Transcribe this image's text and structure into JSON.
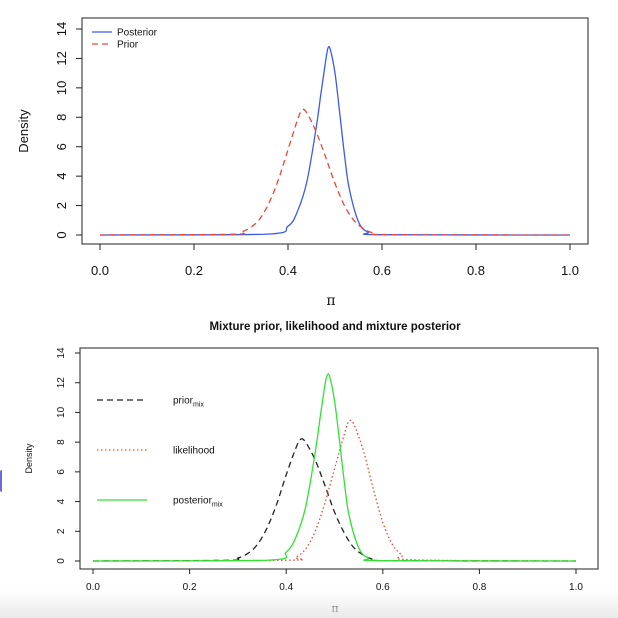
{
  "chart_data": [
    {
      "type": "line",
      "title": "",
      "xlabel": "π",
      "ylabel": "Density",
      "xlim": [
        0,
        1
      ],
      "ylim": [
        0,
        14
      ],
      "x_ticks": [
        0.0,
        0.2,
        0.4,
        0.6,
        0.8,
        1.0
      ],
      "x_tick_labels": [
        "0.0",
        "0.2",
        "0.4",
        "0.6",
        "0.8",
        "1.0"
      ],
      "y_ticks": [
        0,
        2,
        4,
        6,
        8,
        10,
        12,
        14
      ],
      "y_tick_labels": [
        "0",
        "2",
        "4",
        "6",
        "8",
        "10",
        "12",
        "14"
      ],
      "grid": false,
      "legend_position": "top-left",
      "series": [
        {
          "name": "Posterior",
          "color": "#3d5be8",
          "dash": "solid",
          "x": [
            0.0,
            0.35,
            0.4,
            0.42,
            0.44,
            0.46,
            0.47,
            0.48,
            0.485,
            0.49,
            0.5,
            0.51,
            0.52,
            0.53,
            0.55,
            0.57,
            0.6,
            1.0
          ],
          "y": [
            0,
            0.05,
            0.6,
            1.6,
            3.6,
            7.3,
            9.6,
            11.8,
            12.7,
            12.6,
            11.0,
            8.3,
            5.5,
            3.2,
            0.9,
            0.2,
            0.02,
            0
          ]
        },
        {
          "name": "Prior",
          "color": "#e8473a",
          "dash": "dashed",
          "x": [
            0.0,
            0.28,
            0.3,
            0.32,
            0.34,
            0.36,
            0.38,
            0.4,
            0.42,
            0.43,
            0.44,
            0.46,
            0.48,
            0.5,
            0.52,
            0.54,
            0.56,
            0.58,
            0.62,
            1.0
          ],
          "y": [
            0,
            0.05,
            0.2,
            0.5,
            1.1,
            2.2,
            3.8,
            5.8,
            7.8,
            8.5,
            8.3,
            7.0,
            5.3,
            3.5,
            2.0,
            1.0,
            0.45,
            0.15,
            0.02,
            0
          ]
        }
      ]
    },
    {
      "type": "line",
      "title": "Mixture prior, likelihood and mixture posterior",
      "xlabel": "π",
      "ylabel": "Density",
      "xlim": [
        0,
        1
      ],
      "ylim": [
        0,
        14
      ],
      "x_ticks": [
        0.0,
        0.2,
        0.4,
        0.6,
        0.8,
        1.0
      ],
      "x_tick_labels": [
        "0.0",
        "0.2",
        "0.4",
        "0.6",
        "0.8",
        "1.0"
      ],
      "y_ticks": [
        0,
        2,
        4,
        6,
        8,
        10,
        12,
        14
      ],
      "y_tick_labels": [
        "0",
        "2",
        "4",
        "6",
        "8",
        "10",
        "12",
        "14"
      ],
      "grid": false,
      "legend_position": "left",
      "series": [
        {
          "name": "prior",
          "name_subscript": "mix",
          "color": "#222222",
          "dash": "dashed",
          "x": [
            0.0,
            0.28,
            0.3,
            0.32,
            0.34,
            0.36,
            0.38,
            0.4,
            0.42,
            0.43,
            0.44,
            0.46,
            0.48,
            0.5,
            0.52,
            0.54,
            0.56,
            0.58,
            0.62,
            1.0
          ],
          "y": [
            0,
            0.05,
            0.2,
            0.5,
            1.1,
            2.2,
            3.8,
            5.8,
            7.6,
            8.2,
            8.0,
            6.8,
            5.1,
            3.3,
            1.9,
            0.9,
            0.4,
            0.12,
            0.02,
            0
          ]
        },
        {
          "name": "likelihood",
          "color": "#e8473a",
          "dash": "dotted",
          "x": [
            0.0,
            0.4,
            0.42,
            0.44,
            0.46,
            0.48,
            0.5,
            0.52,
            0.53,
            0.54,
            0.56,
            0.58,
            0.6,
            0.62,
            0.64,
            0.66,
            1.0
          ],
          "y": [
            0,
            0.05,
            0.25,
            0.8,
            2.0,
            3.9,
            6.2,
            8.5,
            9.4,
            9.2,
            7.4,
            4.9,
            2.6,
            1.1,
            0.4,
            0.08,
            0
          ]
        },
        {
          "name": "posterior",
          "name_subscript": "mix",
          "color": "#33e033",
          "dash": "solid",
          "x": [
            0.0,
            0.36,
            0.4,
            0.42,
            0.44,
            0.46,
            0.47,
            0.48,
            0.485,
            0.49,
            0.5,
            0.51,
            0.52,
            0.53,
            0.55,
            0.57,
            0.6,
            1.0
          ],
          "y": [
            0,
            0.05,
            0.6,
            1.6,
            3.6,
            7.3,
            9.6,
            11.8,
            12.5,
            12.4,
            10.8,
            8.2,
            5.4,
            3.1,
            0.9,
            0.2,
            0.02,
            0
          ]
        }
      ]
    }
  ]
}
